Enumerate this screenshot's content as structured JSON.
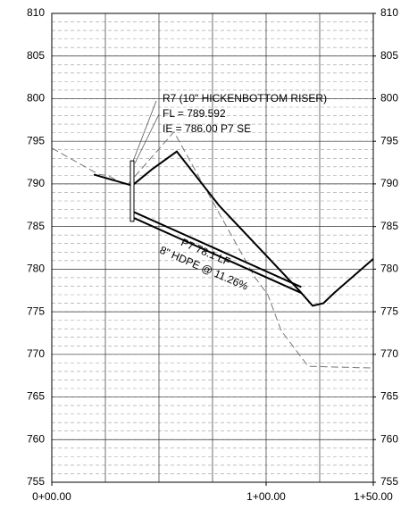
{
  "chart_data": {
    "type": "line",
    "xlim": [
      0,
      150
    ],
    "xticks": [
      {
        "value": 0,
        "label": "0+00.00"
      },
      {
        "value": 100,
        "label": "1+00.00"
      },
      {
        "value": 150,
        "label": "1+50.00"
      }
    ],
    "xgrid_step": 25,
    "ylim": [
      755,
      810
    ],
    "yticks": [
      755,
      760,
      765,
      770,
      775,
      780,
      785,
      790,
      795,
      800,
      805,
      810
    ],
    "y2lim": [
      755,
      810
    ],
    "y2ticks": [
      755,
      760,
      765,
      770,
      775,
      780,
      785,
      790,
      795,
      800,
      805,
      810
    ],
    "minor_grid_step": 1,
    "grid": true,
    "series": [
      {
        "color": "#777777",
        "style": "dashed",
        "x": [
          0,
          22,
          26,
          35,
          57,
          76,
          94.6,
          100.8,
          107,
          119.6,
          150
        ],
        "values": [
          794.2,
          791.1,
          791.0,
          789.8,
          796.1,
          787.5,
          779.1,
          777.0,
          772.8,
          768.6,
          768.4
        ]
      },
      {
        "color": "#000000",
        "style": "solid",
        "x": [
          19.6,
          37.5,
          46.7,
          58.3,
          77.9,
          115.4,
          121.7,
          126.7,
          131.7,
          150
        ],
        "values": [
          791.1,
          789.8,
          791.7,
          793.8,
          787.5,
          777.5,
          775.7,
          776.0,
          777.2,
          781.2
        ]
      },
      {
        "color": "#000000",
        "style": "pipe",
        "x": [
          38.3,
          116.4
        ],
        "values": [
          786.0,
          777.2
        ]
      },
      {
        "color": "#000000",
        "style": "pipe",
        "x": [
          38.3,
          116.4
        ],
        "values": [
          786.7,
          777.9
        ]
      },
      {
        "color": "#000000",
        "style": "box",
        "x": [
          37.5,
          37.5
        ],
        "values": [
          785.6,
          792.7
        ]
      }
    ],
    "annotations": [
      "R7 (10\" HICKENBOTTOM RISER)",
      "FL = 789.592",
      "IE = 786.00 P7 SE",
      "P7 78.1 LF",
      "8\" HDPE @ 11.26%"
    ]
  }
}
